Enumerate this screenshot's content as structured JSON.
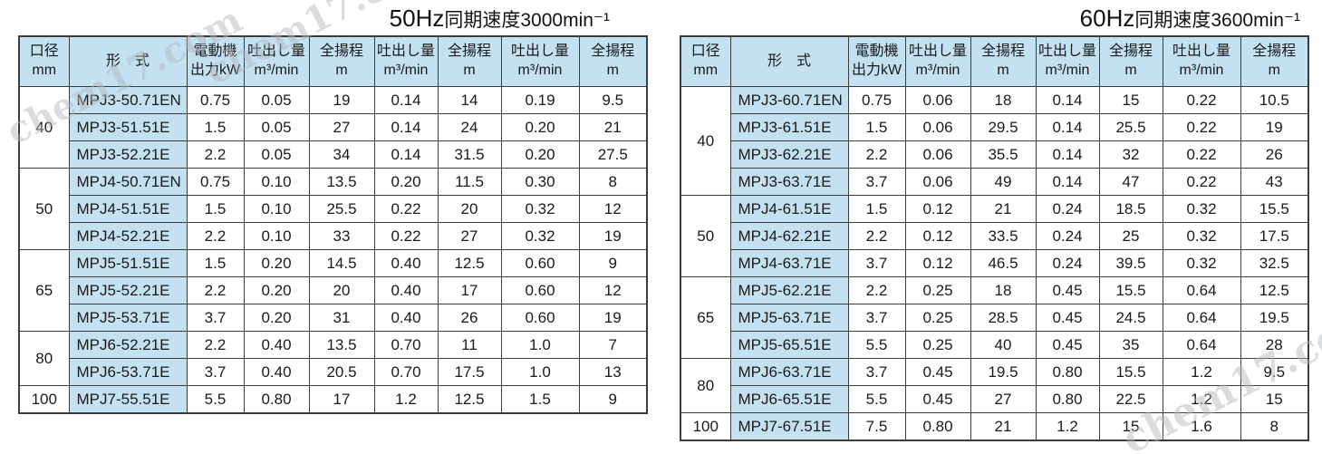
{
  "watermark": {
    "text": "chem17.com"
  },
  "header_columns": {
    "diameter": [
      "口径",
      "mm"
    ],
    "model": "形　式",
    "motor": [
      "電動機",
      "出力kW"
    ],
    "discharge": [
      "吐出し量",
      "m³/min"
    ],
    "total_head": [
      "全揚程",
      "m"
    ],
    "pair_count": 3
  },
  "colors": {
    "header_bg": "#c3e1f1",
    "model_bg": "#c3e1f1",
    "border": "#3c3c3c"
  },
  "tables": [
    {
      "id": "50hz",
      "title_freq": "50Hz",
      "title_rest": "同期速度3000min⁻¹",
      "groups": [
        {
          "diameter": "40",
          "rows": [
            {
              "model": "MPJ3-50.71EN",
              "values": [
                "0.75",
                "0.05",
                "19",
                "0.14",
                "14",
                "0.19",
                "9.5"
              ]
            },
            {
              "model": "MPJ3-51.51E",
              "values": [
                "1.5",
                "0.05",
                "27",
                "0.14",
                "24",
                "0.20",
                "21"
              ]
            },
            {
              "model": "MPJ3-52.21E",
              "values": [
                "2.2",
                "0.05",
                "34",
                "0.14",
                "31.5",
                "0.20",
                "27.5"
              ]
            }
          ]
        },
        {
          "diameter": "50",
          "rows": [
            {
              "model": "MPJ4-50.71EN",
              "values": [
                "0.75",
                "0.10",
                "13.5",
                "0.20",
                "11.5",
                "0.30",
                "8"
              ]
            },
            {
              "model": "MPJ4-51.51E",
              "values": [
                "1.5",
                "0.10",
                "25.5",
                "0.22",
                "20",
                "0.32",
                "12"
              ]
            },
            {
              "model": "MPJ4-52.21E",
              "values": [
                "2.2",
                "0.10",
                "33",
                "0.22",
                "27",
                "0.32",
                "19"
              ]
            }
          ]
        },
        {
          "diameter": "65",
          "rows": [
            {
              "model": "MPJ5-51.51E",
              "values": [
                "1.5",
                "0.20",
                "14.5",
                "0.40",
                "12.5",
                "0.60",
                "9"
              ]
            },
            {
              "model": "MPJ5-52.21E",
              "values": [
                "2.2",
                "0.20",
                "20",
                "0.40",
                "17",
                "0.60",
                "12"
              ]
            },
            {
              "model": "MPJ5-53.71E",
              "values": [
                "3.7",
                "0.20",
                "31",
                "0.40",
                "26",
                "0.60",
                "19"
              ]
            }
          ]
        },
        {
          "diameter": "80",
          "rows": [
            {
              "model": "MPJ6-52.21E",
              "values": [
                "2.2",
                "0.40",
                "13.5",
                "0.70",
                "11",
                "1.0",
                "7"
              ]
            },
            {
              "model": "MPJ6-53.71E",
              "values": [
                "3.7",
                "0.40",
                "20.5",
                "0.70",
                "17.5",
                "1.0",
                "13"
              ]
            }
          ]
        },
        {
          "diameter": "100",
          "rows": [
            {
              "model": "MPJ7-55.51E",
              "values": [
                "5.5",
                "0.80",
                "17",
                "1.2",
                "12.5",
                "1.5",
                "9"
              ]
            }
          ]
        }
      ]
    },
    {
      "id": "60hz",
      "title_freq": "60Hz",
      "title_rest": "同期速度3600min⁻¹",
      "groups": [
        {
          "diameter": "40",
          "rows": [
            {
              "model": "MPJ3-60.71EN",
              "values": [
                "0.75",
                "0.06",
                "18",
                "0.14",
                "15",
                "0.22",
                "10.5"
              ]
            },
            {
              "model": "MPJ3-61.51E",
              "values": [
                "1.5",
                "0.06",
                "29.5",
                "0.14",
                "25.5",
                "0.22",
                "19"
              ]
            },
            {
              "model": "MPJ3-62.21E",
              "values": [
                "2.2",
                "0.06",
                "35.5",
                "0.14",
                "32",
                "0.22",
                "26"
              ]
            },
            {
              "model": "MPJ3-63.71E",
              "values": [
                "3.7",
                "0.06",
                "49",
                "0.14",
                "47",
                "0.22",
                "43"
              ]
            }
          ]
        },
        {
          "diameter": "50",
          "rows": [
            {
              "model": "MPJ4-61.51E",
              "values": [
                "1.5",
                "0.12",
                "21",
                "0.24",
                "18.5",
                "0.32",
                "15.5"
              ]
            },
            {
              "model": "MPJ4-62.21E",
              "values": [
                "2.2",
                "0.12",
                "33.5",
                "0.24",
                "25",
                "0.32",
                "17.5"
              ]
            },
            {
              "model": "MPJ4-63.71E",
              "values": [
                "3.7",
                "0.12",
                "46.5",
                "0.24",
                "39.5",
                "0.32",
                "32.5"
              ]
            }
          ]
        },
        {
          "diameter": "65",
          "rows": [
            {
              "model": "MPJ5-62.21E",
              "values": [
                "2.2",
                "0.25",
                "18",
                "0.45",
                "15.5",
                "0.64",
                "12.5"
              ]
            },
            {
              "model": "MPJ5-63.71E",
              "values": [
                "3.7",
                "0.25",
                "28.5",
                "0.45",
                "24.5",
                "0.64",
                "19.5"
              ]
            },
            {
              "model": "MPJ5-65.51E",
              "values": [
                "5.5",
                "0.25",
                "40",
                "0.45",
                "35",
                "0.64",
                "28"
              ]
            }
          ]
        },
        {
          "diameter": "80",
          "rows": [
            {
              "model": "MPJ6-63.71E",
              "values": [
                "3.7",
                "0.45",
                "19.5",
                "0.80",
                "15.5",
                "1.2",
                "9.5"
              ]
            },
            {
              "model": "MPJ6-65.51E",
              "values": [
                "5.5",
                "0.45",
                "27",
                "0.80",
                "22.5",
                "1.2",
                "15"
              ]
            }
          ]
        },
        {
          "diameter": "100",
          "rows": [
            {
              "model": "MPJ7-67.51E",
              "values": [
                "7.5",
                "0.80",
                "21",
                "1.2",
                "15",
                "1.6",
                "8"
              ]
            }
          ]
        }
      ]
    }
  ]
}
